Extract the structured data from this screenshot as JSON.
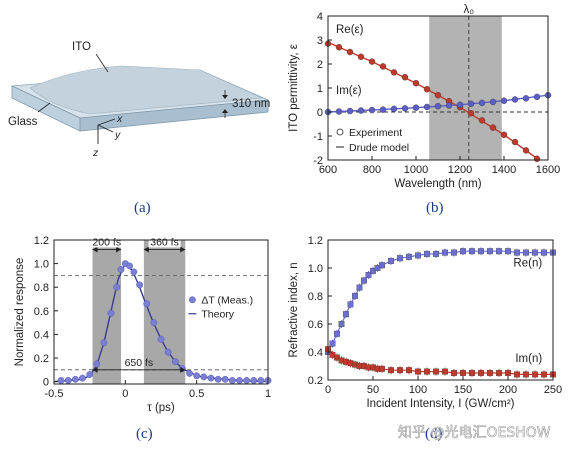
{
  "panel_a": {
    "caption": "(a)",
    "labels": {
      "ito": "ITO",
      "glass": "Glass",
      "thickness": "310 nm",
      "x": "x",
      "y": "y",
      "z": "z"
    },
    "colors": {
      "ito_top": "#cdd9e3",
      "slab_front": "#9fb7c8",
      "glass_side": "#b9ccd9"
    }
  },
  "chart_data": [
    {
      "id": "b",
      "type": "line",
      "caption": "(b)",
      "xlabel": "Wavelength (nm)",
      "ylabel": "ITO permittivity, ε",
      "xlim": [
        600,
        1600
      ],
      "ylim": [
        -2,
        4
      ],
      "xticks": [
        600,
        800,
        1000,
        1200,
        1400,
        1600
      ],
      "yticks": [
        -2,
        -1,
        0,
        1,
        2,
        3,
        4
      ],
      "shaded_band": [
        1060,
        1390
      ],
      "vline": {
        "x": 1240,
        "label": "λ₀"
      },
      "hline_y": 0,
      "legend": {
        "position": "bottom-left",
        "entries": [
          "Experiment",
          "Drude model"
        ]
      },
      "series": [
        {
          "name": "Re(ε)",
          "color": "#c0392b",
          "x": [
            600,
            650,
            700,
            750,
            800,
            850,
            900,
            950,
            1000,
            1050,
            1100,
            1150,
            1200,
            1250,
            1300,
            1350,
            1400,
            1450,
            1500,
            1550
          ],
          "y": [
            2.85,
            2.7,
            2.5,
            2.3,
            2.1,
            1.9,
            1.65,
            1.45,
            1.2,
            0.95,
            0.7,
            0.45,
            0.2,
            -0.05,
            -0.35,
            -0.65,
            -0.95,
            -1.25,
            -1.6,
            -1.95
          ],
          "model": [
            [
              600,
              2.9
            ],
            [
              800,
              2.1
            ],
            [
              1000,
              1.2
            ],
            [
              1200,
              0.2
            ],
            [
              1400,
              -0.95
            ],
            [
              1560,
              -2.0
            ]
          ]
        },
        {
          "name": "Im(ε)",
          "color": "#5b5fc7",
          "x": [
            600,
            650,
            700,
            750,
            800,
            850,
            900,
            950,
            1000,
            1050,
            1100,
            1150,
            1200,
            1250,
            1300,
            1350,
            1400,
            1450,
            1500,
            1550,
            1600
          ],
          "y": [
            0.0,
            0.02,
            0.04,
            0.06,
            0.08,
            0.1,
            0.13,
            0.15,
            0.18,
            0.21,
            0.24,
            0.27,
            0.3,
            0.34,
            0.38,
            0.42,
            0.47,
            0.52,
            0.57,
            0.63,
            0.7
          ],
          "model": [
            [
              600,
              0.0
            ],
            [
              800,
              0.08
            ],
            [
              1000,
              0.18
            ],
            [
              1200,
              0.3
            ],
            [
              1400,
              0.47
            ],
            [
              1600,
              0.7
            ]
          ]
        }
      ]
    },
    {
      "id": "c",
      "type": "scatter",
      "caption": "(c)",
      "xlabel": "τ (ps)",
      "ylabel": "Normalized response",
      "xlim": [
        -0.5,
        1
      ],
      "ylim": [
        -0.02,
        1.2
      ],
      "xticks": [
        -0.5,
        0,
        0.5,
        1
      ],
      "xtick_labels": [
        "-0.5",
        "0",
        "0.5",
        "1"
      ],
      "yticks": [
        0,
        0.2,
        0.4,
        0.6,
        0.8,
        1.0,
        1.2
      ],
      "ytick_labels": [
        "0",
        "0.2",
        "0.4",
        "0.6",
        "0.8",
        "1.0",
        "1.2"
      ],
      "shaded_bands": [
        [
          -0.23,
          -0.03
        ],
        [
          0.13,
          0.42
        ]
      ],
      "dashed_levels": [
        0.9,
        0.1
      ],
      "annotations": [
        {
          "text": "200 fs",
          "from": -0.23,
          "to": -0.03,
          "y": 1.12
        },
        {
          "text": "360 fs",
          "from": 0.13,
          "to": 0.42,
          "y": 1.12
        },
        {
          "text": "650 fs",
          "from": -0.23,
          "to": 0.42,
          "y": 0.1
        }
      ],
      "legend": {
        "position": "right",
        "entries": [
          "ΔT (Meas.)",
          "Theory"
        ]
      },
      "series": [
        {
          "name": "ΔT (Meas.)",
          "color": "#7b7fd4",
          "x": [
            -0.45,
            -0.4,
            -0.35,
            -0.3,
            -0.25,
            -0.2,
            -0.15,
            -0.1,
            -0.06,
            -0.03,
            0.0,
            0.03,
            0.06,
            0.1,
            0.15,
            0.2,
            0.25,
            0.3,
            0.35,
            0.4,
            0.45,
            0.5,
            0.55,
            0.6,
            0.65,
            0.7,
            0.75,
            0.8,
            0.85,
            0.9,
            0.95,
            1.0
          ],
          "y": [
            0.01,
            0.01,
            0.02,
            0.03,
            0.06,
            0.15,
            0.33,
            0.58,
            0.8,
            0.95,
            1.0,
            0.98,
            0.93,
            0.82,
            0.66,
            0.5,
            0.36,
            0.25,
            0.17,
            0.11,
            0.07,
            0.05,
            0.04,
            0.03,
            0.02,
            0.02,
            0.01,
            0.01,
            0.01,
            0.01,
            0.01,
            0.01
          ]
        },
        {
          "name": "Theory",
          "color": "#3a3d8f",
          "x": [
            -0.5,
            -0.3,
            -0.25,
            -0.2,
            -0.15,
            -0.1,
            -0.05,
            0.0,
            0.05,
            0.1,
            0.15,
            0.2,
            0.25,
            0.3,
            0.35,
            0.4,
            0.5,
            0.6,
            0.8,
            1.0
          ],
          "y": [
            0.0,
            0.02,
            0.05,
            0.14,
            0.33,
            0.6,
            0.87,
            1.0,
            0.94,
            0.8,
            0.64,
            0.49,
            0.36,
            0.25,
            0.17,
            0.11,
            0.05,
            0.03,
            0.01,
            0.0
          ]
        }
      ]
    },
    {
      "id": "d",
      "type": "scatter",
      "caption": "(d)",
      "xlabel": "Incident Intensity, I (GW/cm²)",
      "ylabel": "Refractive index, n",
      "xlim": [
        0,
        250
      ],
      "ylim": [
        0.2,
        1.2
      ],
      "xticks": [
        0,
        50,
        100,
        150,
        200,
        250
      ],
      "yticks": [
        0.2,
        0.4,
        0.6,
        0.8,
        1.0,
        1.2
      ],
      "series": [
        {
          "name": "Re(n)",
          "color": "#6b6fd0",
          "x": [
            0,
            5,
            10,
            15,
            20,
            25,
            30,
            35,
            40,
            45,
            50,
            55,
            60,
            70,
            80,
            90,
            100,
            110,
            120,
            130,
            140,
            150,
            160,
            170,
            180,
            190,
            200,
            210,
            220,
            230,
            240,
            250
          ],
          "y": [
            0.4,
            0.46,
            0.53,
            0.6,
            0.67,
            0.74,
            0.8,
            0.86,
            0.91,
            0.95,
            0.98,
            1.0,
            1.02,
            1.05,
            1.07,
            1.08,
            1.09,
            1.1,
            1.1,
            1.11,
            1.11,
            1.12,
            1.12,
            1.12,
            1.12,
            1.12,
            1.12,
            1.11,
            1.11,
            1.11,
            1.11,
            1.11
          ]
        },
        {
          "name": "Im(n)",
          "color": "#c0392b",
          "x": [
            0,
            5,
            10,
            15,
            20,
            25,
            30,
            35,
            40,
            45,
            50,
            55,
            60,
            70,
            80,
            90,
            100,
            110,
            120,
            130,
            140,
            150,
            160,
            170,
            180,
            190,
            200,
            210,
            220,
            230,
            240,
            250
          ],
          "y": [
            0.42,
            0.38,
            0.36,
            0.34,
            0.33,
            0.32,
            0.31,
            0.3,
            0.3,
            0.29,
            0.29,
            0.28,
            0.28,
            0.27,
            0.27,
            0.27,
            0.26,
            0.26,
            0.26,
            0.26,
            0.25,
            0.25,
            0.25,
            0.25,
            0.25,
            0.25,
            0.25,
            0.24,
            0.24,
            0.24,
            0.24,
            0.24
          ]
        }
      ]
    }
  ],
  "watermark": {
    "text": "知乎 @光电汇OESHOW"
  }
}
